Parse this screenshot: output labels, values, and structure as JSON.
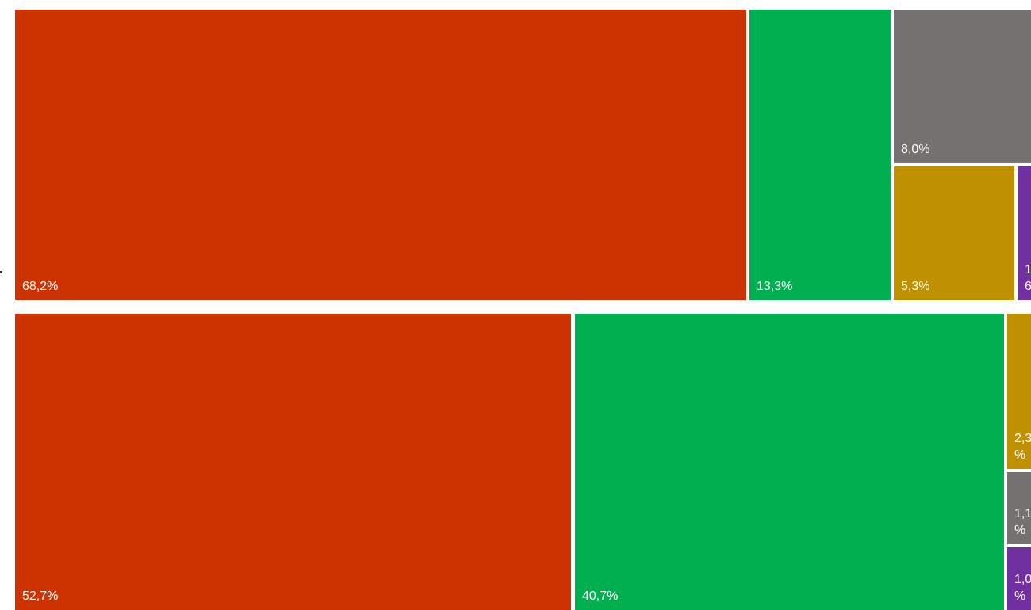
{
  "chart_data": [
    {
      "type": "treemap",
      "tiles": [
        {
          "label": "68,2%",
          "value": 68.2,
          "color": "#CC3300"
        },
        {
          "label": "13,3%",
          "value": 13.3,
          "color": "#00B050"
        },
        {
          "label": "8,0%",
          "value": 8.0,
          "color": "#767171"
        },
        {
          "label": "5,3%",
          "value": 5.3,
          "color": "#BF9000"
        },
        {
          "label": "1\n6",
          "value": null,
          "color": "#7030A0"
        }
      ]
    },
    {
      "type": "treemap",
      "tiles": [
        {
          "label": "52,7%",
          "value": 52.7,
          "color": "#CC3300"
        },
        {
          "label": "40,7%",
          "value": 40.7,
          "color": "#00B050"
        },
        {
          "label": "2,3\n%",
          "value": 2.3,
          "color": "#BF9000"
        },
        {
          "label": "1,1\n%",
          "value": 1.1,
          "color": "#767171"
        },
        {
          "label": "1,0\n%",
          "value": 1.0,
          "color": "#7030A0"
        }
      ]
    }
  ]
}
